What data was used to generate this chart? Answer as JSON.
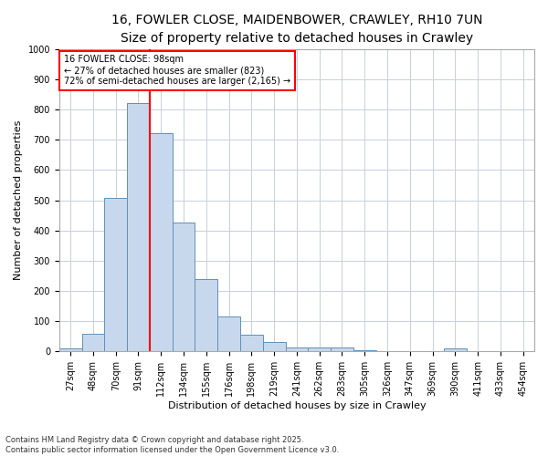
{
  "title": "16, FOWLER CLOSE, MAIDENBOWER, CRAWLEY, RH10 7UN",
  "subtitle": "Size of property relative to detached houses in Crawley",
  "xlabel": "Distribution of detached houses by size in Crawley",
  "ylabel": "Number of detached properties",
  "bar_color": "#c8d8ec",
  "bar_edge_color": "#6090b8",
  "background_color": "#ffffff",
  "fig_background_color": "#ffffff",
  "grid_color": "#c8d0dc",
  "categories": [
    "27sqm",
    "48sqm",
    "70sqm",
    "91sqm",
    "112sqm",
    "134sqm",
    "155sqm",
    "176sqm",
    "198sqm",
    "219sqm",
    "241sqm",
    "262sqm",
    "283sqm",
    "305sqm",
    "326sqm",
    "347sqm",
    "369sqm",
    "390sqm",
    "411sqm",
    "433sqm",
    "454sqm"
  ],
  "values": [
    10,
    57,
    507,
    823,
    723,
    425,
    238,
    116,
    55,
    30,
    14,
    12,
    12,
    5,
    0,
    0,
    0,
    10,
    0,
    0,
    0
  ],
  "ylim": [
    0,
    1000
  ],
  "yticks": [
    0,
    100,
    200,
    300,
    400,
    500,
    600,
    700,
    800,
    900,
    1000
  ],
  "annotation_line1": "16 FOWLER CLOSE: 98sqm",
  "annotation_line2": "← 27% of detached houses are smaller (823)",
  "annotation_line3": "72% of semi-detached houses are larger (2,165) →",
  "vline_bar_index": 3,
  "footnote1": "Contains HM Land Registry data © Crown copyright and database right 2025.",
  "footnote2": "Contains public sector information licensed under the Open Government Licence v3.0.",
  "title_fontsize": 10,
  "subtitle_fontsize": 9,
  "axis_label_fontsize": 8,
  "tick_fontsize": 7,
  "annotation_fontsize": 7,
  "footnote_fontsize": 6
}
